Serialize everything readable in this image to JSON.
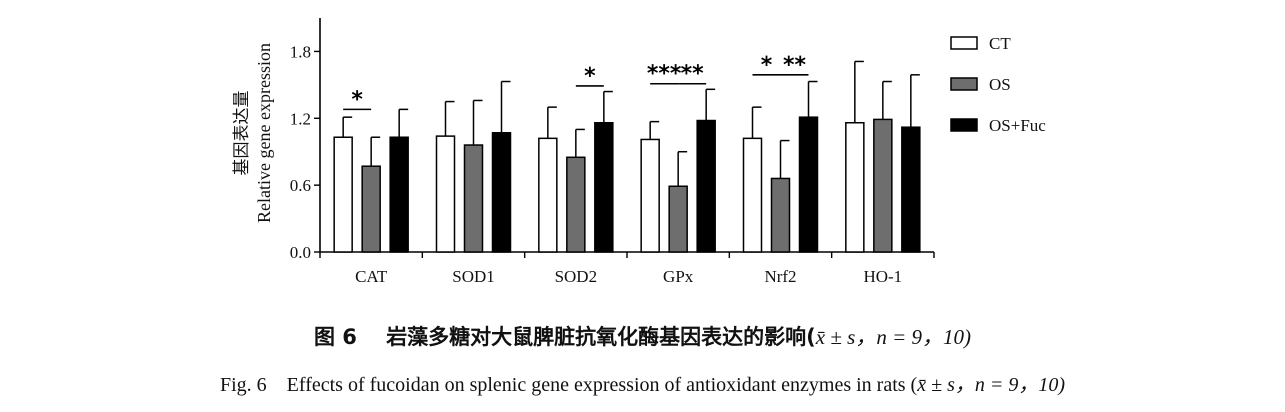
{
  "chart_data": {
    "type": "bar",
    "categories": [
      "CAT",
      "SOD1",
      "SOD2",
      "GPx",
      "Nrf2",
      "HO-1"
    ],
    "ylabel_cn": "基因表达量",
    "ylabel_en": "Relative gene expression",
    "ylim": [
      0,
      2.1
    ],
    "yticks": [
      "0.0",
      "0.6",
      "1.2",
      "1.8"
    ],
    "ytick_values": [
      0,
      0.6,
      1.2,
      1.8
    ],
    "grid": false,
    "legend_position": "right",
    "series": [
      {
        "name": "CT",
        "color": "#ffffff",
        "values": [
          1.03,
          1.04,
          1.02,
          1.01,
          1.02,
          1.16
        ],
        "errors": [
          0.18,
          0.31,
          0.28,
          0.16,
          0.28,
          0.55
        ]
      },
      {
        "name": "OS",
        "color": "#6e6e6e",
        "values": [
          0.77,
          0.96,
          0.85,
          0.59,
          0.66,
          1.19
        ],
        "errors": [
          0.26,
          0.4,
          0.25,
          0.31,
          0.34,
          0.34
        ]
      },
      {
        "name": "OS+Fuc",
        "color": "#000000",
        "values": [
          1.03,
          1.07,
          1.16,
          1.18,
          1.21,
          1.12
        ],
        "errors": [
          0.25,
          0.46,
          0.28,
          0.28,
          0.32,
          0.47
        ]
      }
    ],
    "annotations": [
      {
        "text": "*",
        "category": "CAT",
        "from_series": 0,
        "to_series": 1,
        "y": 1.28
      },
      {
        "text": "*",
        "category": "SOD2",
        "from_series": 1,
        "to_series": 2,
        "y": 1.49
      },
      {
        "text": "***",
        "category": "GPx",
        "from_series": 0,
        "to_series": 1,
        "y": 1.51
      },
      {
        "text": "**",
        "category": "GPx",
        "from_series": 1,
        "to_series": 2,
        "y": 1.51
      },
      {
        "text": "*",
        "category": "Nrf2",
        "from_series": 0,
        "to_series": 1,
        "y": 1.59
      },
      {
        "text": "**",
        "category": "Nrf2",
        "from_series": 1,
        "to_series": 2,
        "y": 1.59
      }
    ]
  },
  "caption": {
    "cn_label": "图 6",
    "cn_text": "岩藻多糖对大鼠脾脏抗氧化酶基因表达的影响(",
    "cn_stat": "x̄ ± s，n = 9，10)",
    "en_label": "Fig. 6",
    "en_text": "Effects of fucoidan on splenic gene expression of antioxidant enzymes in rats (",
    "en_stat": "x̄ ± s，n = 9，10)"
  }
}
